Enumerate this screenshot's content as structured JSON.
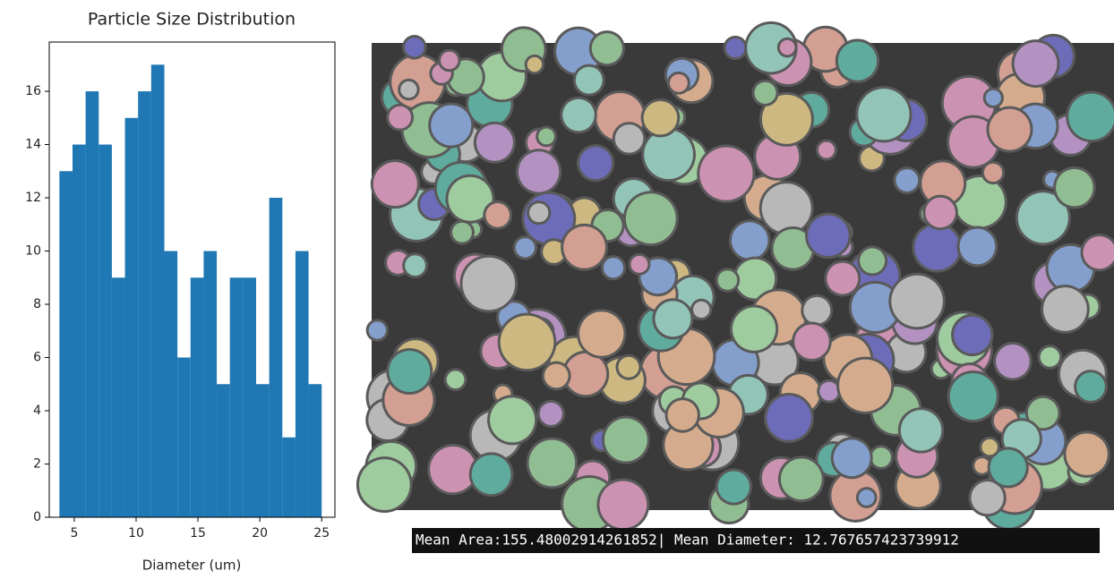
{
  "chart_data": {
    "type": "histogram",
    "title": "Particle Size Distribution",
    "x_label": "Diameter (um)",
    "bins": [
      3.8,
      4.86,
      5.92,
      6.98,
      8.04,
      9.1,
      10.16,
      11.22,
      12.28,
      13.34,
      14.4,
      15.46,
      16.52,
      17.58,
      18.64,
      19.7,
      20.76,
      21.82,
      22.88,
      23.94,
      25.0
    ],
    "values": [
      13,
      14,
      16,
      14,
      9,
      15,
      16,
      17,
      10,
      6,
      9,
      10,
      5,
      9,
      9,
      5,
      12,
      3,
      10,
      5
    ],
    "color": "#1f77b4",
    "xlim": [
      2.98,
      26.07
    ],
    "xticks": [
      5,
      10,
      15,
      20,
      25
    ],
    "ylim": [
      0,
      17.85
    ],
    "yticks": [
      0,
      2,
      4,
      6,
      8,
      10,
      12,
      14,
      16
    ]
  },
  "image": {
    "caption": "Mean Area:155.48002914261852| Mean Diameter: 12.767657423739912"
  }
}
